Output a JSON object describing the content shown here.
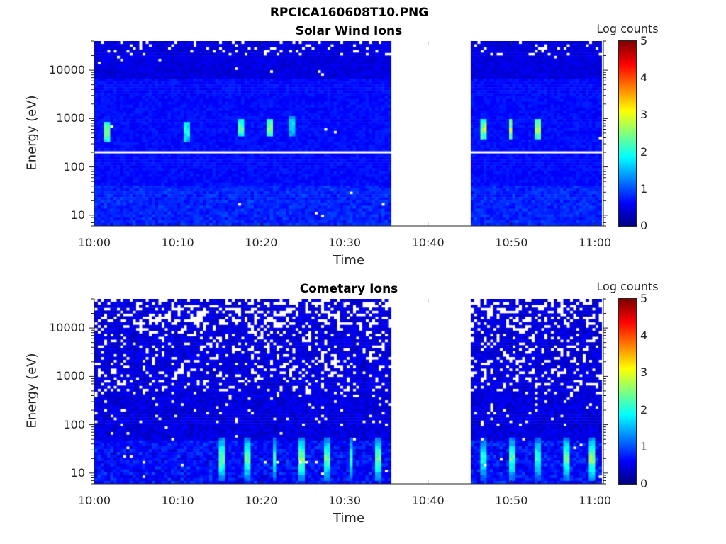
{
  "figure_title": "RPCICA160608T10.PNG",
  "chart_data": [
    {
      "type": "heatmap",
      "title": "Solar Wind Ions",
      "xlabel": "Time",
      "ylabel": "Energy (eV)",
      "xticks": [
        "10:00",
        "10:10",
        "10:20",
        "10:30",
        "10:40",
        "10:50",
        "11:00"
      ],
      "xlim_minutes": [
        0,
        61
      ],
      "yscale": "log",
      "ylim": [
        6,
        40000
      ],
      "yticks": [
        "10",
        "100",
        "1000",
        "10000"
      ],
      "data_gap_minutes": [
        35.5,
        45
      ],
      "blank_energy_row_eV": 200,
      "bursts": [
        {
          "time_min": 1.5,
          "energy_eV": 550,
          "log_counts": 2.8
        },
        {
          "time_min": 11.2,
          "energy_eV": 550,
          "log_counts": 2.3
        },
        {
          "time_min": 17.7,
          "energy_eV": 650,
          "log_counts": 2.6
        },
        {
          "time_min": 20.9,
          "energy_eV": 650,
          "log_counts": 2.8
        },
        {
          "time_min": 23.8,
          "energy_eV": 700,
          "log_counts": 2.0
        },
        {
          "time_min": 46.8,
          "energy_eV": 600,
          "log_counts": 3.0
        },
        {
          "time_min": 49.9,
          "energy_eV": 600,
          "log_counts": 3.1
        },
        {
          "time_min": 53.1,
          "energy_eV": 600,
          "log_counts": 3.0
        }
      ],
      "colorbar": {
        "label": "Log counts",
        "range": [
          0,
          5
        ],
        "ticks": [
          "0",
          "1",
          "2",
          "3",
          "4",
          "5"
        ],
        "colormap": "jet"
      }
    },
    {
      "type": "heatmap",
      "title": "Cometary Ions",
      "xlabel": "Time",
      "ylabel": "Energy (eV)",
      "xticks": [
        "10:00",
        "10:10",
        "10:20",
        "10:30",
        "10:40",
        "10:50",
        "11:00"
      ],
      "xlim_minutes": [
        0,
        61
      ],
      "yscale": "log",
      "ylim": [
        6,
        40000
      ],
      "yticks": [
        "10",
        "100",
        "1000",
        "10000"
      ],
      "data_gap_minutes": [
        35.5,
        45
      ],
      "bursts": [
        {
          "time_min": 15.2,
          "energy_eV": 20,
          "log_counts": 2.8
        },
        {
          "time_min": 18.2,
          "energy_eV": 20,
          "log_counts": 2.7
        },
        {
          "time_min": 21.6,
          "energy_eV": 20,
          "log_counts": 2.5
        },
        {
          "time_min": 24.8,
          "energy_eV": 20,
          "log_counts": 2.9
        },
        {
          "time_min": 27.8,
          "energy_eV": 20,
          "log_counts": 2.7
        },
        {
          "time_min": 30.8,
          "energy_eV": 20,
          "log_counts": 2.4
        },
        {
          "time_min": 34.0,
          "energy_eV": 20,
          "log_counts": 2.8
        },
        {
          "time_min": 46.8,
          "energy_eV": 20,
          "log_counts": 2.3
        },
        {
          "time_min": 50.0,
          "energy_eV": 20,
          "log_counts": 2.6
        },
        {
          "time_min": 53.1,
          "energy_eV": 20,
          "log_counts": 2.4
        },
        {
          "time_min": 56.5,
          "energy_eV": 20,
          "log_counts": 2.7
        },
        {
          "time_min": 59.8,
          "energy_eV": 20,
          "log_counts": 2.9
        }
      ],
      "colorbar": {
        "label": "Log counts",
        "range": [
          0,
          5
        ],
        "ticks": [
          "0",
          "1",
          "2",
          "3",
          "4",
          "5"
        ],
        "colormap": "jet"
      }
    }
  ]
}
